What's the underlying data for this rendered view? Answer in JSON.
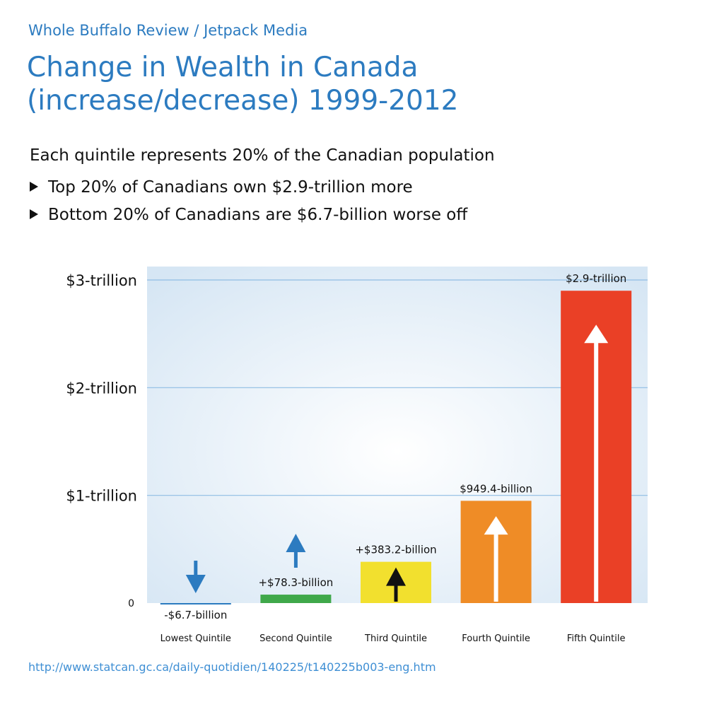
{
  "header": {
    "source": "Whole Buffalo Review / Jetpack Media",
    "title": "Change in Wealth in Canada (increase/decrease) 1999-2012",
    "subtitle": "Each quintile represents 20% of the Canadian population",
    "bullets": [
      "Top 20% of Canadians own $2.9-trillion more",
      "Bottom 20% of Canadians are $6.7-billion worse off"
    ]
  },
  "chart_data": {
    "type": "bar",
    "categories": [
      "Lowest Quintile",
      "Second Quintile",
      "Third Quintile",
      "Fourth Quintile",
      "Fifth Quintile"
    ],
    "values": [
      -6.7,
      78.3,
      383.2,
      949.4,
      2900
    ],
    "value_unit": "billion CAD",
    "data_labels": [
      "-$6.7-billion",
      "+$78.3-billion",
      "+$383.2-billion",
      "$949.4-billion",
      "$2.9-trillion"
    ],
    "y_ticks": [
      {
        "value": 0,
        "label": "0"
      },
      {
        "value": 1000,
        "label": "$1-trillion"
      },
      {
        "value": 2000,
        "label": "$2-trillion"
      },
      {
        "value": 3000,
        "label": "$3-trillion"
      }
    ],
    "ylim": [
      0,
      3000
    ],
    "colors": [
      "#2c7bc0",
      "#3fa84a",
      "#f2e02e",
      "#ef8c26",
      "#ea4026"
    ],
    "arrow_colors": [
      "#2c7bc0",
      "#2c7bc0",
      "#111111",
      "#ffffff",
      "#ffffff"
    ],
    "arrow_directions": [
      "down",
      "up",
      "up",
      "up",
      "up"
    ],
    "grid": true,
    "background": "#d6e6f4"
  },
  "footer": {
    "url": "http://www.statcan.gc.ca/daily-quotidien/140225/t140225b003-eng.htm"
  }
}
